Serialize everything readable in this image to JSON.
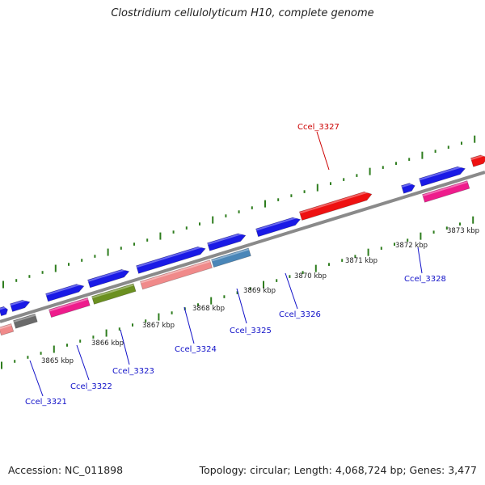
{
  "title": "Clostridium cellulolyticum H10, complete genome",
  "footer": {
    "accession": "Accession: NC_011898",
    "summary": "Topology: circular; Length: 4,068,724 bp; Genes: 3,477"
  },
  "colors": {
    "backbone": "#8a8a8a",
    "tick": "#2e7d1e",
    "label_plus": "#cc0000",
    "label_minus": "#1010c8",
    "blue": "#1a1ae6",
    "red": "#ee1111",
    "pink": "#ee1c8c",
    "salmon": "#f08a8a",
    "grey": "#6a6a6a",
    "olive": "#6b9020",
    "steel": "#4a86b8"
  },
  "kbp_labels": [
    "3865 kbp",
    "3866 kbp",
    "3867 kbp",
    "3868 kbp",
    "3869 kbp",
    "3870 kbp",
    "3871 kbp",
    "3872 kbp",
    "3873 kbp"
  ],
  "genes": [
    {
      "label": "Ccel_3321",
      "strand": "minus"
    },
    {
      "label": "Ccel_3322",
      "strand": "minus"
    },
    {
      "label": "Ccel_3323",
      "strand": "minus"
    },
    {
      "label": "Ccel_3324",
      "strand": "minus"
    },
    {
      "label": "Ccel_3325",
      "strand": "minus"
    },
    {
      "label": "Ccel_3326",
      "strand": "minus"
    },
    {
      "label": "Ccel_3327",
      "strand": "plus"
    },
    {
      "label": "Ccel_3328",
      "strand": "minus"
    }
  ]
}
